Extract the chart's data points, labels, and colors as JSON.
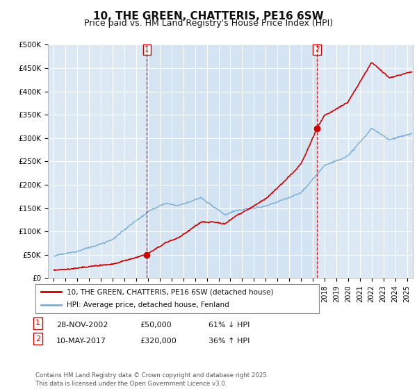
{
  "title": "10, THE GREEN, CHATTERIS, PE16 6SW",
  "subtitle": "Price paid vs. HM Land Registry's House Price Index (HPI)",
  "ylabel_ticks": [
    "£0",
    "£50K",
    "£100K",
    "£150K",
    "£200K",
    "£250K",
    "£300K",
    "£350K",
    "£400K",
    "£450K",
    "£500K"
  ],
  "ytick_values": [
    0,
    50000,
    100000,
    150000,
    200000,
    250000,
    300000,
    350000,
    400000,
    450000,
    500000
  ],
  "xlim_start": 1994.5,
  "xlim_end": 2025.5,
  "ylim": [
    0,
    500000
  ],
  "fig_bg_color": "#ffffff",
  "plot_bg_color": "#dce9f5",
  "shade_color": "#c8ddf0",
  "grid_color": "#ffffff",
  "red_line_color": "#cc0000",
  "blue_line_color": "#7aadd4",
  "marker1_date": 2002.91,
  "marker1_value": 50000,
  "marker2_date": 2017.37,
  "marker2_value": 320000,
  "vline_color": "#cc0000",
  "legend_red": "10, THE GREEN, CHATTERIS, PE16 6SW (detached house)",
  "legend_blue": "HPI: Average price, detached house, Fenland",
  "footnote": "Contains HM Land Registry data © Crown copyright and database right 2025.\nThis data is licensed under the Open Government Licence v3.0.",
  "title_fontsize": 11,
  "subtitle_fontsize": 9
}
